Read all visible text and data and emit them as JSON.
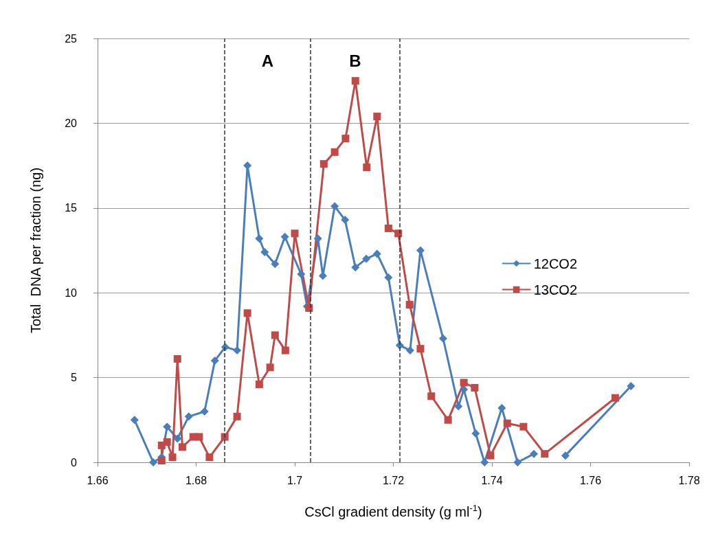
{
  "chart_data": {
    "type": "line",
    "xlabel": "CsCl gradient density (g ml$^{-1}$)",
    "ylabel": "Total  DNA per fraction (ng)",
    "xlim": [
      1.66,
      1.78
    ],
    "xticks": [
      1.66,
      1.68,
      1.7,
      1.72,
      1.74,
      1.76,
      1.78
    ],
    "ylim": [
      0,
      25
    ],
    "yticks": [
      0,
      5,
      10,
      15,
      20,
      25
    ],
    "grid": "y",
    "legend": "right",
    "line_style": "solid",
    "series": [
      {
        "name": "12CO2",
        "color": "#4a7ebb",
        "marker": "diamond",
        "x": [
          1.6675,
          1.6713,
          1.673,
          1.6741,
          1.6762,
          1.6785,
          1.6817,
          1.6838,
          1.6859,
          1.6883,
          1.6904,
          1.6928,
          1.6939,
          1.696,
          1.698,
          1.7013,
          1.7025,
          1.7047,
          1.7057,
          1.7081,
          1.7102,
          1.7123,
          1.7145,
          1.7167,
          1.719,
          1.7213,
          1.7234,
          1.7255,
          1.7301,
          1.7332,
          1.7343,
          1.7367,
          1.7385,
          1.742,
          1.7452,
          1.7485,
          1.752,
          1.7549,
          1.7682
        ],
        "values": [
          2.5,
          0,
          0.3,
          2.1,
          1.4,
          2.7,
          3.0,
          6.0,
          6.8,
          6.6,
          17.5,
          13.2,
          12.4,
          11.7,
          13.3,
          11.1,
          9.2,
          13.2,
          11.0,
          15.1,
          14.3,
          11.5,
          12.0,
          12.3,
          10.9,
          6.9,
          6.6,
          12.5,
          7.3,
          3.3,
          4.3,
          1.7,
          0,
          3.2,
          0,
          0.5,
          null,
          0.4,
          4.5
        ]
      },
      {
        "name": "13CO2",
        "color": "#be4b48",
        "marker": "square",
        "x": [
          1.673,
          1.673,
          1.6741,
          1.6752,
          1.6762,
          1.6772,
          1.6794,
          1.6806,
          1.6827,
          1.6858,
          1.6883,
          1.6904,
          1.6928,
          1.695,
          1.696,
          1.6981,
          1.7,
          1.7029,
          1.7059,
          1.7081,
          1.7103,
          1.7123,
          1.7146,
          1.7167,
          1.719,
          1.721,
          1.7233,
          1.7255,
          1.7277,
          1.7311,
          1.7343,
          1.7365,
          1.7397,
          1.7431,
          1.7464,
          1.7507,
          1.765
        ],
        "values": [
          0.1,
          1.0,
          1.2,
          0.3,
          6.1,
          0.9,
          1.5,
          1.5,
          0.3,
          1.5,
          2.7,
          8.8,
          4.6,
          5.6,
          7.5,
          6.6,
          13.5,
          9.1,
          17.6,
          18.3,
          19.1,
          22.5,
          17.4,
          20.4,
          13.8,
          13.5,
          9.3,
          6.7,
          3.9,
          2.5,
          4.7,
          4.4,
          0.4,
          2.3,
          2.1,
          0.5,
          3.8
        ]
      }
    ],
    "ref_lines": [
      {
        "axis": "x",
        "value": 1.6858,
        "color": "#333333",
        "line_style": "dashed"
      },
      {
        "axis": "x",
        "value": 1.7032,
        "color": "#333333",
        "line_style": "dashed"
      },
      {
        "axis": "x",
        "value": 1.7213,
        "color": "#333333",
        "line_style": "dashed"
      }
    ],
    "annotations": [
      "A",
      "B"
    ]
  }
}
